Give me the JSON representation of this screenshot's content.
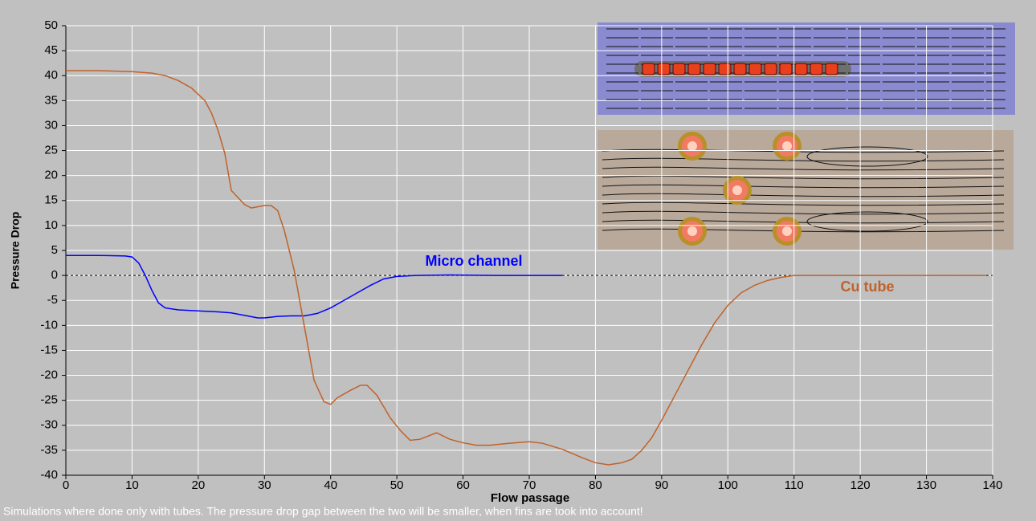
{
  "chart_data": {
    "type": "line",
    "xlabel": "Flow passage",
    "ylabel": "Pressure Drop",
    "xlim": [
      0,
      140
    ],
    "xticks": [
      0,
      10,
      20,
      30,
      40,
      50,
      60,
      70,
      80,
      90,
      100,
      110,
      120,
      130,
      140
    ],
    "ylim": [
      -40,
      50
    ],
    "yticks": [
      -40,
      -35,
      -30,
      -25,
      -20,
      -15,
      -10,
      -5,
      0,
      5,
      10,
      15,
      20,
      25,
      30,
      35,
      40,
      45,
      50
    ],
    "grid": true,
    "series": [
      {
        "name": "Micro channel",
        "color": "#0000ff",
        "x": [
          0,
          5,
          9,
          10,
          11,
          12,
          13,
          14,
          15,
          17,
          20,
          23,
          25,
          27,
          29,
          30,
          32,
          34,
          36,
          38,
          40,
          42,
          44,
          46,
          48,
          50,
          53,
          58,
          65,
          75
        ],
        "values": [
          4,
          4,
          3.9,
          3.7,
          2.5,
          0,
          -3,
          -5.5,
          -6.5,
          -6.9,
          -7.1,
          -7.3,
          -7.5,
          -8,
          -8.5,
          -8.5,
          -8.2,
          -8.1,
          -8.1,
          -7.6,
          -6.5,
          -5,
          -3.5,
          -2,
          -0.7,
          -0.2,
          0,
          0.1,
          0,
          0
        ]
      },
      {
        "name": "Cu tube",
        "color": "#c0622a",
        "x": [
          0,
          5,
          10,
          13,
          15,
          17,
          19,
          21,
          22,
          23,
          24,
          25,
          27,
          28,
          30,
          31,
          32,
          33,
          34.5,
          36,
          37.5,
          39,
          40,
          41,
          43,
          44.5,
          45.5,
          47,
          49,
          50.5,
          52,
          53.5,
          56,
          58,
          60,
          62,
          64,
          67,
          70,
          72,
          75,
          78,
          80,
          82,
          84,
          85.5,
          87,
          88.5,
          90,
          92,
          94,
          96,
          98,
          100,
          102,
          104,
          106,
          108,
          110,
          120,
          130,
          139
        ],
        "values": [
          41,
          41,
          40.8,
          40.5,
          40,
          39,
          37.5,
          35,
          32.5,
          29,
          24.5,
          17,
          14.2,
          13.5,
          14,
          14,
          13,
          9,
          1,
          -10,
          -21,
          -25.3,
          -25.8,
          -24.5,
          -23,
          -22,
          -22,
          -24,
          -28.5,
          -31,
          -33,
          -32.8,
          -31.5,
          -32.8,
          -33.5,
          -34,
          -34,
          -33.6,
          -33.3,
          -33.6,
          -34.8,
          -36.5,
          -37.5,
          -37.9,
          -37.5,
          -36.8,
          -35,
          -32.5,
          -29,
          -24,
          -19,
          -14,
          -9.5,
          -6,
          -3.5,
          -2,
          -1,
          -0.4,
          0,
          0,
          0,
          0
        ]
      }
    ],
    "note": "Simulations where done only with tubes. The pressure drop gap between the two will be smaller, when fins are took into account!"
  }
}
